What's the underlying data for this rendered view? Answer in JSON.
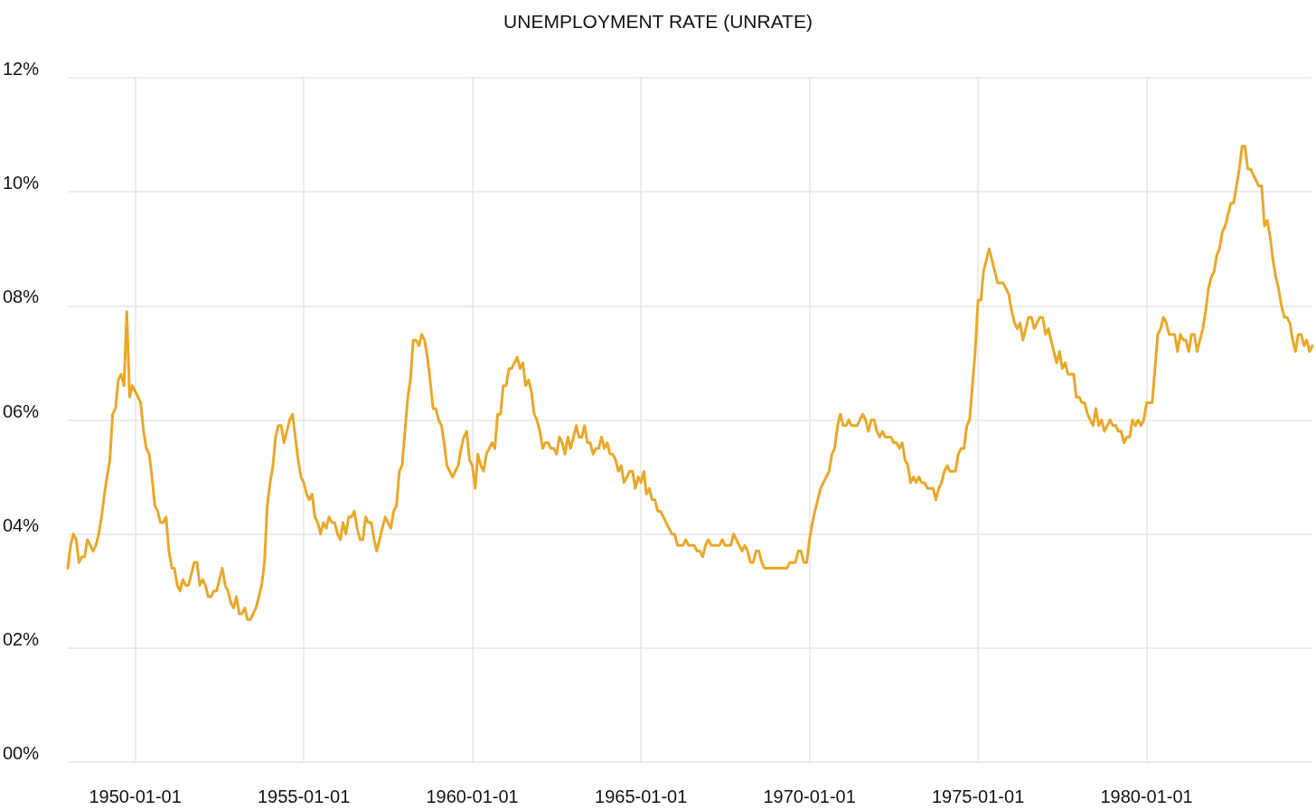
{
  "chart_data": {
    "type": "line",
    "title": "UNEMPLOYMENT RATE (UNRATE)",
    "x": [
      "1948-01",
      "1948-02",
      "1948-03",
      "1948-04",
      "1948-05",
      "1948-06",
      "1948-07",
      "1948-08",
      "1948-09",
      "1948-10",
      "1948-11",
      "1948-12",
      "1949-01",
      "1949-02",
      "1949-03",
      "1949-04",
      "1949-05",
      "1949-06",
      "1949-07",
      "1949-08",
      "1949-09",
      "1949-10",
      "1949-11",
      "1949-12",
      "1950-01",
      "1950-02",
      "1950-03",
      "1950-04",
      "1950-05",
      "1950-06",
      "1950-07",
      "1950-08",
      "1950-09",
      "1950-10",
      "1950-11",
      "1950-12",
      "1951-01",
      "1951-02",
      "1951-03",
      "1951-04",
      "1951-05",
      "1951-06",
      "1951-07",
      "1951-08",
      "1951-09",
      "1951-10",
      "1951-11",
      "1951-12",
      "1952-01",
      "1952-02",
      "1952-03",
      "1952-04",
      "1952-05",
      "1952-06",
      "1952-07",
      "1952-08",
      "1952-09",
      "1952-10",
      "1952-11",
      "1952-12",
      "1953-01",
      "1953-02",
      "1953-03",
      "1953-04",
      "1953-05",
      "1953-06",
      "1953-07",
      "1953-08",
      "1953-09",
      "1953-10",
      "1953-11",
      "1953-12",
      "1954-01",
      "1954-02",
      "1954-03",
      "1954-04",
      "1954-05",
      "1954-06",
      "1954-07",
      "1954-08",
      "1954-09",
      "1954-10",
      "1954-11",
      "1954-12",
      "1955-01",
      "1955-02",
      "1955-03",
      "1955-04",
      "1955-05",
      "1955-06",
      "1955-07",
      "1955-08",
      "1955-09",
      "1955-10",
      "1955-11",
      "1955-12",
      "1956-01",
      "1956-02",
      "1956-03",
      "1956-04",
      "1956-05",
      "1956-06",
      "1956-07",
      "1956-08",
      "1956-09",
      "1956-10",
      "1956-11",
      "1956-12",
      "1957-01",
      "1957-02",
      "1957-03",
      "1957-04",
      "1957-05",
      "1957-06",
      "1957-07",
      "1957-08",
      "1957-09",
      "1957-10",
      "1957-11",
      "1957-12",
      "1958-01",
      "1958-02",
      "1958-03",
      "1958-04",
      "1958-05",
      "1958-06",
      "1958-07",
      "1958-08",
      "1958-09",
      "1958-10",
      "1958-11",
      "1958-12",
      "1959-01",
      "1959-02",
      "1959-03",
      "1959-04",
      "1959-05",
      "1959-06",
      "1959-07",
      "1959-08",
      "1959-09",
      "1959-10",
      "1959-11",
      "1959-12",
      "1960-01",
      "1960-02",
      "1960-03",
      "1960-04",
      "1960-05",
      "1960-06",
      "1960-07",
      "1960-08",
      "1960-09",
      "1960-10",
      "1960-11",
      "1960-12",
      "1961-01",
      "1961-02",
      "1961-03",
      "1961-04",
      "1961-05",
      "1961-06",
      "1961-07",
      "1961-08",
      "1961-09",
      "1961-10",
      "1961-11",
      "1961-12",
      "1962-01",
      "1962-02",
      "1962-03",
      "1962-04",
      "1962-05",
      "1962-06",
      "1962-07",
      "1962-08",
      "1962-09",
      "1962-10",
      "1962-11",
      "1962-12",
      "1963-01",
      "1963-02",
      "1963-03",
      "1963-04",
      "1963-05",
      "1963-06",
      "1963-07",
      "1963-08",
      "1963-09",
      "1963-10",
      "1963-11",
      "1963-12",
      "1964-01",
      "1964-02",
      "1964-03",
      "1964-04",
      "1964-05",
      "1964-06",
      "1964-07",
      "1964-08",
      "1964-09",
      "1964-10",
      "1964-11",
      "1964-12",
      "1965-01",
      "1965-02",
      "1965-03",
      "1965-04",
      "1965-05",
      "1965-06",
      "1965-07",
      "1965-08",
      "1965-09",
      "1965-10",
      "1965-11",
      "1965-12",
      "1966-01",
      "1966-02",
      "1966-03",
      "1966-04",
      "1966-05",
      "1966-06",
      "1966-07",
      "1966-08",
      "1966-09",
      "1966-10",
      "1966-11",
      "1966-12",
      "1967-01",
      "1967-02",
      "1967-03",
      "1967-04",
      "1967-05",
      "1967-06",
      "1967-07",
      "1967-08",
      "1967-09",
      "1967-10",
      "1967-11",
      "1967-12",
      "1968-01",
      "1968-02",
      "1968-03",
      "1968-04",
      "1968-05",
      "1968-06",
      "1968-07",
      "1968-08",
      "1968-09",
      "1968-10",
      "1968-11",
      "1968-12",
      "1969-01",
      "1969-02",
      "1969-03",
      "1969-04",
      "1969-05",
      "1969-06",
      "1969-07",
      "1969-08",
      "1969-09",
      "1969-10",
      "1969-11",
      "1969-12",
      "1970-01",
      "1970-02",
      "1970-03",
      "1970-04",
      "1970-05",
      "1970-06",
      "1970-07",
      "1970-08",
      "1970-09",
      "1970-10",
      "1970-11",
      "1970-12",
      "1971-01",
      "1971-02",
      "1971-03",
      "1971-04",
      "1971-05",
      "1971-06",
      "1971-07",
      "1971-08",
      "1971-09",
      "1971-10",
      "1971-11",
      "1971-12",
      "1972-01",
      "1972-02",
      "1972-03",
      "1972-04",
      "1972-05",
      "1972-06",
      "1972-07",
      "1972-08",
      "1972-09",
      "1972-10",
      "1972-11",
      "1972-12",
      "1973-01",
      "1973-02",
      "1973-03",
      "1973-04",
      "1973-05",
      "1973-06",
      "1973-07",
      "1973-08",
      "1973-09",
      "1973-10",
      "1973-11",
      "1973-12",
      "1974-01",
      "1974-02",
      "1974-03",
      "1974-04",
      "1974-05",
      "1974-06",
      "1974-07",
      "1974-08",
      "1974-09",
      "1974-10",
      "1974-11",
      "1974-12",
      "1975-01",
      "1975-02",
      "1975-03",
      "1975-04",
      "1975-05",
      "1975-06",
      "1975-07",
      "1975-08",
      "1975-09",
      "1975-10",
      "1975-11",
      "1975-12",
      "1976-01",
      "1976-02",
      "1976-03",
      "1976-04",
      "1976-05",
      "1976-06",
      "1976-07",
      "1976-08",
      "1976-09",
      "1976-10",
      "1976-11",
      "1976-12",
      "1977-01",
      "1977-02",
      "1977-03",
      "1977-04",
      "1977-05",
      "1977-06",
      "1977-07",
      "1977-08",
      "1977-09",
      "1977-10",
      "1977-11",
      "1977-12",
      "1978-01",
      "1978-02",
      "1978-03",
      "1978-04",
      "1978-05",
      "1978-06",
      "1978-07",
      "1978-08",
      "1978-09",
      "1978-10",
      "1978-11",
      "1978-12",
      "1979-01",
      "1979-02",
      "1979-03",
      "1979-04",
      "1979-05",
      "1979-06",
      "1979-07",
      "1979-08",
      "1979-09",
      "1979-10",
      "1979-11",
      "1979-12",
      "1980-01",
      "1980-02",
      "1980-03",
      "1980-04",
      "1980-05",
      "1980-06",
      "1980-07",
      "1980-08",
      "1980-09",
      "1980-10",
      "1980-11",
      "1980-12",
      "1981-01",
      "1981-02",
      "1981-03",
      "1981-04",
      "1981-05",
      "1981-06",
      "1981-07",
      "1981-08",
      "1981-09",
      "1981-10",
      "1981-11",
      "1981-12",
      "1982-01",
      "1982-02",
      "1982-03",
      "1982-04",
      "1982-05",
      "1982-06",
      "1982-07",
      "1982-08",
      "1982-09",
      "1982-10",
      "1982-11",
      "1982-12",
      "1983-01",
      "1983-02",
      "1983-03",
      "1983-04",
      "1983-05",
      "1983-06",
      "1983-07",
      "1983-08",
      "1983-09",
      "1983-10",
      "1983-11",
      "1983-12",
      "1984-01",
      "1984-02",
      "1984-03",
      "1984-04",
      "1984-05",
      "1984-06",
      "1984-07",
      "1984-08",
      "1984-09",
      "1984-10",
      "1984-11",
      "1984-12"
    ],
    "series": [
      {
        "color": "#e8a82a",
        "values": [
          3.4,
          3.8,
          4.0,
          3.9,
          3.5,
          3.6,
          3.6,
          3.9,
          3.8,
          3.7,
          3.8,
          4.0,
          4.3,
          4.7,
          5.0,
          5.3,
          6.1,
          6.2,
          6.7,
          6.8,
          6.6,
          7.9,
          6.4,
          6.6,
          6.5,
          6.4,
          6.3,
          5.8,
          5.5,
          5.4,
          5.0,
          4.5,
          4.4,
          4.2,
          4.2,
          4.3,
          3.7,
          3.4,
          3.4,
          3.1,
          3.0,
          3.2,
          3.1,
          3.1,
          3.3,
          3.5,
          3.5,
          3.1,
          3.2,
          3.1,
          2.9,
          2.9,
          3.0,
          3.0,
          3.2,
          3.4,
          3.1,
          3.0,
          2.8,
          2.7,
          2.9,
          2.6,
          2.6,
          2.7,
          2.5,
          2.5,
          2.6,
          2.7,
          2.9,
          3.1,
          3.5,
          4.5,
          4.9,
          5.2,
          5.7,
          5.9,
          5.9,
          5.6,
          5.8,
          6.0,
          6.1,
          5.7,
          5.3,
          5.0,
          4.9,
          4.7,
          4.6,
          4.7,
          4.3,
          4.2,
          4.0,
          4.2,
          4.1,
          4.3,
          4.2,
          4.2,
          4.0,
          3.9,
          4.2,
          4.0,
          4.3,
          4.3,
          4.4,
          4.1,
          3.9,
          3.9,
          4.3,
          4.2,
          4.2,
          3.9,
          3.7,
          3.9,
          4.1,
          4.3,
          4.2,
          4.1,
          4.4,
          4.5,
          5.1,
          5.2,
          5.8,
          6.4,
          6.7,
          7.4,
          7.4,
          7.3,
          7.5,
          7.4,
          7.1,
          6.7,
          6.2,
          6.2,
          6.0,
          5.9,
          5.6,
          5.2,
          5.1,
          5.0,
          5.1,
          5.2,
          5.5,
          5.7,
          5.8,
          5.3,
          5.2,
          4.8,
          5.4,
          5.2,
          5.1,
          5.4,
          5.5,
          5.6,
          5.5,
          6.1,
          6.1,
          6.6,
          6.6,
          6.9,
          6.9,
          7.0,
          7.1,
          6.9,
          7.0,
          6.6,
          6.7,
          6.5,
          6.1,
          6.0,
          5.8,
          5.5,
          5.6,
          5.6,
          5.5,
          5.5,
          5.4,
          5.7,
          5.6,
          5.4,
          5.7,
          5.5,
          5.7,
          5.9,
          5.7,
          5.7,
          5.9,
          5.6,
          5.6,
          5.4,
          5.5,
          5.5,
          5.7,
          5.5,
          5.6,
          5.4,
          5.4,
          5.3,
          5.1,
          5.2,
          4.9,
          5.0,
          5.1,
          5.1,
          4.8,
          5.0,
          4.9,
          5.1,
          4.7,
          4.8,
          4.6,
          4.6,
          4.4,
          4.4,
          4.3,
          4.2,
          4.1,
          4.0,
          4.0,
          3.8,
          3.8,
          3.8,
          3.9,
          3.8,
          3.8,
          3.8,
          3.7,
          3.7,
          3.6,
          3.8,
          3.9,
          3.8,
          3.8,
          3.8,
          3.8,
          3.9,
          3.8,
          3.8,
          3.8,
          4.0,
          3.9,
          3.8,
          3.7,
          3.8,
          3.7,
          3.5,
          3.5,
          3.7,
          3.7,
          3.5,
          3.4,
          3.4,
          3.4,
          3.4,
          3.4,
          3.4,
          3.4,
          3.4,
          3.4,
          3.5,
          3.5,
          3.5,
          3.7,
          3.7,
          3.5,
          3.5,
          3.9,
          4.2,
          4.4,
          4.6,
          4.8,
          4.9,
          5.0,
          5.1,
          5.4,
          5.5,
          5.9,
          6.1,
          5.9,
          5.9,
          6.0,
          5.9,
          5.9,
          5.9,
          6.0,
          6.1,
          6.0,
          5.8,
          6.0,
          6.0,
          5.8,
          5.7,
          5.8,
          5.7,
          5.7,
          5.7,
          5.6,
          5.6,
          5.5,
          5.6,
          5.3,
          5.2,
          4.9,
          5.0,
          4.9,
          5.0,
          4.9,
          4.9,
          4.8,
          4.8,
          4.8,
          4.6,
          4.8,
          4.9,
          5.1,
          5.2,
          5.1,
          5.1,
          5.1,
          5.4,
          5.5,
          5.5,
          5.9,
          6.0,
          6.6,
          7.2,
          8.1,
          8.1,
          8.6,
          8.8,
          9.0,
          8.8,
          8.6,
          8.4,
          8.4,
          8.4,
          8.3,
          8.2,
          7.9,
          7.7,
          7.6,
          7.7,
          7.4,
          7.6,
          7.8,
          7.8,
          7.6,
          7.7,
          7.8,
          7.8,
          7.5,
          7.6,
          7.4,
          7.2,
          7.0,
          7.2,
          6.9,
          7.0,
          6.8,
          6.8,
          6.8,
          6.4,
          6.4,
          6.3,
          6.3,
          6.1,
          6.0,
          5.9,
          6.2,
          5.9,
          6.0,
          5.8,
          5.9,
          6.0,
          5.9,
          5.9,
          5.8,
          5.8,
          5.6,
          5.7,
          5.7,
          6.0,
          5.9,
          6.0,
          5.9,
          6.0,
          6.3,
          6.3,
          6.3,
          6.9,
          7.5,
          7.6,
          7.8,
          7.7,
          7.5,
          7.5,
          7.5,
          7.2,
          7.5,
          7.4,
          7.4,
          7.2,
          7.5,
          7.5,
          7.2,
          7.4,
          7.6,
          7.9,
          8.3,
          8.5,
          8.6,
          8.9,
          9.0,
          9.3,
          9.4,
          9.6,
          9.8,
          9.8,
          10.1,
          10.4,
          10.8,
          10.8,
          10.4,
          10.4,
          10.3,
          10.2,
          10.1,
          10.1,
          9.4,
          9.5,
          9.2,
          8.8,
          8.5,
          8.3,
          8.0,
          7.8,
          7.8,
          7.7,
          7.4,
          7.2,
          7.5,
          7.5,
          7.3,
          7.4,
          7.2,
          7.3
        ]
      }
    ],
    "xlim": [
      "1948-01",
      "1984-12"
    ],
    "xticks": [
      "1950-01-01",
      "1955-01-01",
      "1960-01-01",
      "1965-01-01",
      "1970-01-01",
      "1975-01-01",
      "1980-01-01"
    ],
    "ylim": [
      0,
      12
    ],
    "yticks": [
      {
        "value": 0,
        "label": "00%"
      },
      {
        "value": 2,
        "label": "02%"
      },
      {
        "value": 4,
        "label": "04%"
      },
      {
        "value": 6,
        "label": "06%"
      },
      {
        "value": 8,
        "label": "08%"
      },
      {
        "value": 10,
        "label": "10%"
      },
      {
        "value": 12,
        "label": "12%"
      }
    ],
    "grid": true,
    "marker": "none",
    "line_style": "solid"
  }
}
